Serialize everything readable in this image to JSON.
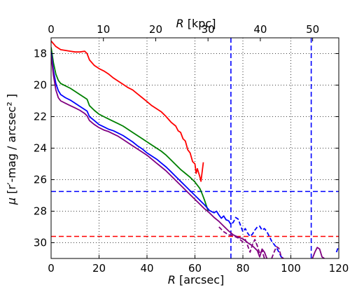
{
  "chart_data": {
    "type": "line",
    "xlabel": "R [arcsec]",
    "ylabel": "μ [r′-mag / arcsec² ]",
    "top_xlabel": "R [kpc]",
    "xlim": [
      0,
      120
    ],
    "ylim": [
      31,
      17
    ],
    "top_xlim": [
      0,
      55
    ],
    "y_inverted": true,
    "grid": true,
    "x_ticks": [
      0,
      20,
      40,
      60,
      80,
      100,
      120
    ],
    "y_ticks": [
      18,
      20,
      22,
      24,
      26,
      28,
      30
    ],
    "top_ticks": [
      0,
      10,
      20,
      30,
      40,
      50
    ],
    "series": [
      {
        "color": "#ff0000",
        "style": "solid",
        "points": [
          [
            0,
            17.2
          ],
          [
            2,
            17.55
          ],
          [
            4,
            17.75
          ],
          [
            6,
            17.8
          ],
          [
            8,
            17.85
          ],
          [
            10,
            17.9
          ],
          [
            12,
            17.9
          ],
          [
            14,
            17.85
          ],
          [
            15,
            18.0
          ],
          [
            16,
            18.4
          ],
          [
            18,
            18.75
          ],
          [
            20,
            18.95
          ],
          [
            22,
            19.1
          ],
          [
            24,
            19.3
          ],
          [
            26,
            19.55
          ],
          [
            28,
            19.75
          ],
          [
            30,
            19.95
          ],
          [
            32,
            20.15
          ],
          [
            34,
            20.3
          ],
          [
            36,
            20.55
          ],
          [
            38,
            20.8
          ],
          [
            40,
            21.05
          ],
          [
            42,
            21.3
          ],
          [
            44,
            21.5
          ],
          [
            46,
            21.7
          ],
          [
            48,
            22.0
          ],
          [
            50,
            22.35
          ],
          [
            52,
            22.6
          ],
          [
            53,
            22.9
          ],
          [
            54,
            23.0
          ],
          [
            55,
            23.4
          ],
          [
            56,
            23.55
          ],
          [
            57,
            24.1
          ],
          [
            58,
            24.3
          ],
          [
            59,
            24.85
          ],
          [
            60,
            25.0
          ],
          [
            60.5,
            25.6
          ],
          [
            61,
            25.3
          ],
          [
            62,
            25.8
          ],
          [
            62.5,
            26.1
          ],
          [
            63,
            25.5
          ],
          [
            63.5,
            24.9
          ]
        ]
      },
      {
        "color": "#008000",
        "style": "solid",
        "points": [
          [
            0,
            17.6
          ],
          [
            1,
            18.6
          ],
          [
            2,
            19.3
          ],
          [
            3,
            19.7
          ],
          [
            4,
            19.9
          ],
          [
            6,
            20.05
          ],
          [
            8,
            20.2
          ],
          [
            10,
            20.4
          ],
          [
            12,
            20.6
          ],
          [
            14,
            20.8
          ],
          [
            15,
            20.9
          ],
          [
            16,
            21.3
          ],
          [
            18,
            21.6
          ],
          [
            20,
            21.85
          ],
          [
            22,
            22.0
          ],
          [
            24,
            22.15
          ],
          [
            26,
            22.3
          ],
          [
            28,
            22.45
          ],
          [
            30,
            22.6
          ],
          [
            32,
            22.8
          ],
          [
            34,
            23.0
          ],
          [
            36,
            23.2
          ],
          [
            38,
            23.4
          ],
          [
            40,
            23.6
          ],
          [
            42,
            23.8
          ],
          [
            44,
            24.0
          ],
          [
            46,
            24.2
          ],
          [
            48,
            24.45
          ],
          [
            50,
            24.75
          ],
          [
            52,
            25.05
          ],
          [
            54,
            25.35
          ],
          [
            56,
            25.6
          ],
          [
            58,
            25.85
          ],
          [
            60,
            26.15
          ],
          [
            62,
            26.55
          ],
          [
            63,
            26.9
          ],
          [
            64,
            27.3
          ],
          [
            65,
            27.75
          ],
          [
            65.5,
            28.0
          ]
        ]
      },
      {
        "color": "#0000ff",
        "style": "solid",
        "points": [
          [
            0,
            17.9
          ],
          [
            1,
            19.1
          ],
          [
            2,
            19.9
          ],
          [
            3,
            20.35
          ],
          [
            4,
            20.6
          ],
          [
            6,
            20.8
          ],
          [
            8,
            20.95
          ],
          [
            10,
            21.15
          ],
          [
            12,
            21.35
          ],
          [
            14,
            21.55
          ],
          [
            15,
            21.65
          ],
          [
            16,
            22.0
          ],
          [
            18,
            22.25
          ],
          [
            20,
            22.5
          ],
          [
            22,
            22.65
          ],
          [
            24,
            22.8
          ],
          [
            26,
            22.9
          ],
          [
            28,
            23.05
          ],
          [
            30,
            23.2
          ],
          [
            32,
            23.4
          ],
          [
            34,
            23.6
          ],
          [
            36,
            23.85
          ],
          [
            38,
            24.05
          ],
          [
            40,
            24.3
          ],
          [
            42,
            24.5
          ],
          [
            44,
            24.7
          ],
          [
            46,
            24.95
          ],
          [
            48,
            25.2
          ],
          [
            50,
            25.5
          ],
          [
            52,
            25.8
          ],
          [
            54,
            26.1
          ],
          [
            56,
            26.4
          ],
          [
            58,
            26.7
          ],
          [
            60,
            27.0
          ],
          [
            62,
            27.3
          ],
          [
            64,
            27.6
          ],
          [
            66,
            27.95
          ],
          [
            68,
            28.1
          ],
          [
            69,
            28.0
          ],
          [
            70,
            28.25
          ],
          [
            71,
            28.45
          ],
          [
            72,
            28.3
          ],
          [
            73,
            28.55
          ],
          [
            74,
            28.6
          ]
        ]
      },
      {
        "color": "#0000ff",
        "style": "dashed",
        "points": [
          [
            74,
            28.6
          ],
          [
            75,
            28.85
          ],
          [
            76,
            28.7
          ],
          [
            77,
            28.4
          ],
          [
            78,
            28.5
          ],
          [
            79,
            28.9
          ],
          [
            80,
            29.3
          ],
          [
            81,
            29.1
          ],
          [
            82,
            29.4
          ],
          [
            83,
            29.6
          ],
          [
            84,
            29.45
          ],
          [
            85,
            29.2
          ],
          [
            86,
            29.0
          ],
          [
            87,
            28.95
          ],
          [
            88,
            29.2
          ],
          [
            89,
            29.1
          ],
          [
            90,
            29.3
          ],
          [
            91,
            29.6
          ],
          [
            92,
            29.9
          ],
          [
            93,
            30.1
          ],
          [
            94,
            30.3
          ],
          [
            95,
            30.6
          ],
          [
            96,
            30.9
          ],
          [
            97,
            31.0
          ]
        ]
      },
      {
        "color": "#800080",
        "style": "solid",
        "points": [
          [
            0,
            18.1
          ],
          [
            1,
            19.4
          ],
          [
            2,
            20.3
          ],
          [
            3,
            20.8
          ],
          [
            4,
            21.0
          ],
          [
            6,
            21.15
          ],
          [
            8,
            21.3
          ],
          [
            10,
            21.45
          ],
          [
            12,
            21.6
          ],
          [
            14,
            21.8
          ],
          [
            15,
            21.95
          ],
          [
            16,
            22.25
          ],
          [
            18,
            22.5
          ],
          [
            20,
            22.7
          ],
          [
            22,
            22.85
          ],
          [
            24,
            22.95
          ],
          [
            26,
            23.1
          ],
          [
            28,
            23.25
          ],
          [
            30,
            23.45
          ],
          [
            32,
            23.65
          ],
          [
            34,
            23.85
          ],
          [
            36,
            24.05
          ],
          [
            38,
            24.25
          ],
          [
            40,
            24.45
          ],
          [
            42,
            24.7
          ],
          [
            44,
            24.95
          ],
          [
            46,
            25.2
          ],
          [
            48,
            25.45
          ],
          [
            50,
            25.75
          ],
          [
            52,
            26.05
          ],
          [
            54,
            26.35
          ],
          [
            56,
            26.65
          ],
          [
            58,
            26.95
          ],
          [
            60,
            27.25
          ],
          [
            62,
            27.55
          ],
          [
            64,
            27.85
          ],
          [
            66,
            28.1
          ],
          [
            68,
            28.4
          ],
          [
            70,
            28.65
          ],
          [
            72,
            28.95
          ],
          [
            74,
            29.25
          ],
          [
            76,
            29.5
          ],
          [
            78,
            29.65
          ],
          [
            80,
            29.75
          ],
          [
            82,
            30.0
          ],
          [
            84,
            30.2
          ],
          [
            86,
            30.5
          ],
          [
            87,
            30.9
          ],
          [
            88,
            30.4
          ],
          [
            89,
            30.6
          ],
          [
            90,
            31.0
          ]
        ]
      },
      {
        "color": "#800080",
        "style": "dashed",
        "points": [
          [
            70,
            29.0
          ],
          [
            72,
            29.3
          ],
          [
            74,
            29.5
          ],
          [
            76,
            29.55
          ],
          [
            78,
            29.7
          ],
          [
            80,
            29.95
          ],
          [
            81,
            29.8
          ],
          [
            82,
            30.2
          ],
          [
            83,
            30.6
          ],
          [
            84,
            30.1
          ],
          [
            85,
            29.8
          ],
          [
            86,
            30.2
          ],
          [
            87,
            30.7
          ],
          [
            88,
            30.5
          ],
          [
            89,
            31.0
          ]
        ]
      },
      {
        "color": "#800080",
        "style": "dashed",
        "points": [
          [
            92,
            31.0
          ],
          [
            93,
            30.6
          ],
          [
            94,
            30.25
          ],
          [
            95,
            30.35
          ],
          [
            96,
            30.9
          ],
          [
            97,
            31.0
          ]
        ]
      },
      {
        "color": "#800080",
        "style": "solid",
        "points": [
          [
            109,
            31.0
          ],
          [
            110,
            30.6
          ],
          [
            111,
            30.3
          ],
          [
            112,
            30.4
          ],
          [
            113,
            30.9
          ],
          [
            114,
            31.0
          ]
        ]
      },
      {
        "color": "#0000ff",
        "style": "dashed",
        "points": [
          [
            119,
            30.6
          ],
          [
            120,
            30.2
          ]
        ]
      }
    ],
    "reference_lines": [
      {
        "orientation": "horizontal",
        "value": 26.75,
        "color": "#0000ff",
        "style": "dashed"
      },
      {
        "orientation": "horizontal",
        "value": 29.6,
        "color": "#ff0000",
        "style": "dashed"
      },
      {
        "orientation": "vertical",
        "value": 75,
        "color": "#0000ff",
        "style": "dashed"
      },
      {
        "orientation": "vertical",
        "value": 108.5,
        "color": "#0000ff",
        "style": "dashed"
      }
    ]
  }
}
